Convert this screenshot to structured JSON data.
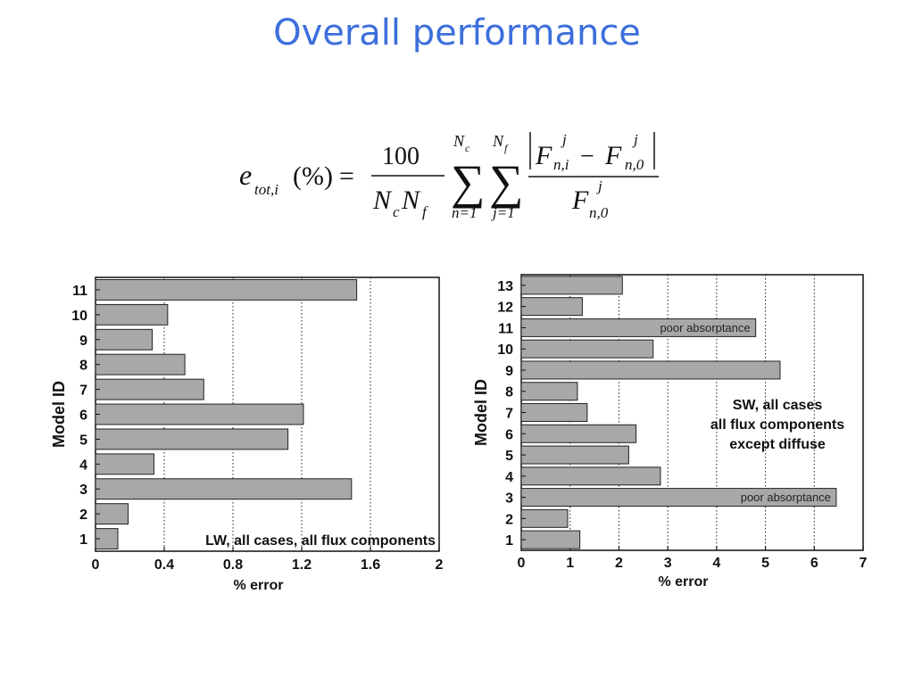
{
  "slide": {
    "title": "Overall performance"
  },
  "formula": {
    "lhs_symbol": "e",
    "lhs_subscript": "tot,i",
    "lhs_unit": "(%)",
    "equals": "=",
    "numerator": "100",
    "den_N": "N",
    "den_sub_c": "c",
    "den_sub_f": "f",
    "sum_symbol": "∑",
    "sum1_upper": "N",
    "sum1_upper_sub": "c",
    "sum1_lower": "n=1",
    "sum2_upper": "N",
    "sum2_upper_sub": "f",
    "sum2_lower": "j=1",
    "frac_num_F1": "F",
    "frac_num_sup1": "j",
    "frac_num_sub1": "n,i",
    "minus": "−",
    "frac_num_F2": "F",
    "frac_num_sup2": "j",
    "frac_num_sub2": "n,0",
    "frac_den_F": "F",
    "frac_den_sup": "j",
    "frac_den_sub": "n,0"
  },
  "chart_data": [
    {
      "type": "bar",
      "orientation": "horizontal",
      "categories": [
        "1",
        "2",
        "3",
        "4",
        "5",
        "6",
        "7",
        "8",
        "9",
        "10",
        "11"
      ],
      "values": [
        0.13,
        0.19,
        1.49,
        0.34,
        1.12,
        1.21,
        0.63,
        0.52,
        0.33,
        0.42,
        1.52
      ],
      "xlabel": "% error",
      "ylabel": "Model ID",
      "xlim": [
        0,
        2
      ],
      "xticks": [
        0,
        0.4,
        0.8,
        1.2,
        1.6,
        2
      ],
      "xtick_labels": [
        "0",
        "0.4",
        "0.8",
        "1.2",
        "1.6",
        "2"
      ],
      "grid": "vertical dotted",
      "bar_color": "#a8a8a8",
      "annotation": "LW, all cases, all flux components"
    },
    {
      "type": "bar",
      "orientation": "horizontal",
      "categories": [
        "1",
        "2",
        "3",
        "4",
        "5",
        "6",
        "7",
        "8",
        "9",
        "10",
        "11",
        "12",
        "13"
      ],
      "values": [
        1.2,
        0.95,
        6.45,
        2.85,
        2.2,
        2.35,
        1.35,
        1.15,
        5.3,
        2.7,
        4.8,
        1.25,
        2.07
      ],
      "bar_labels": [
        "",
        "",
        "poor absorptance",
        "",
        "",
        "",
        "",
        "",
        "",
        "",
        "poor absorptance",
        "",
        ""
      ],
      "xlabel": "% error",
      "ylabel": "Model ID",
      "xlim": [
        0,
        7
      ],
      "xticks": [
        0,
        1,
        2,
        3,
        4,
        5,
        6,
        7
      ],
      "xtick_labels": [
        "0",
        "1",
        "2",
        "3",
        "4",
        "5",
        "6",
        "7"
      ],
      "grid": "vertical dotted",
      "bar_color": "#a8a8a8",
      "annotation_lines": [
        "SW, all cases",
        "all flux components",
        "except diffuse"
      ]
    }
  ]
}
